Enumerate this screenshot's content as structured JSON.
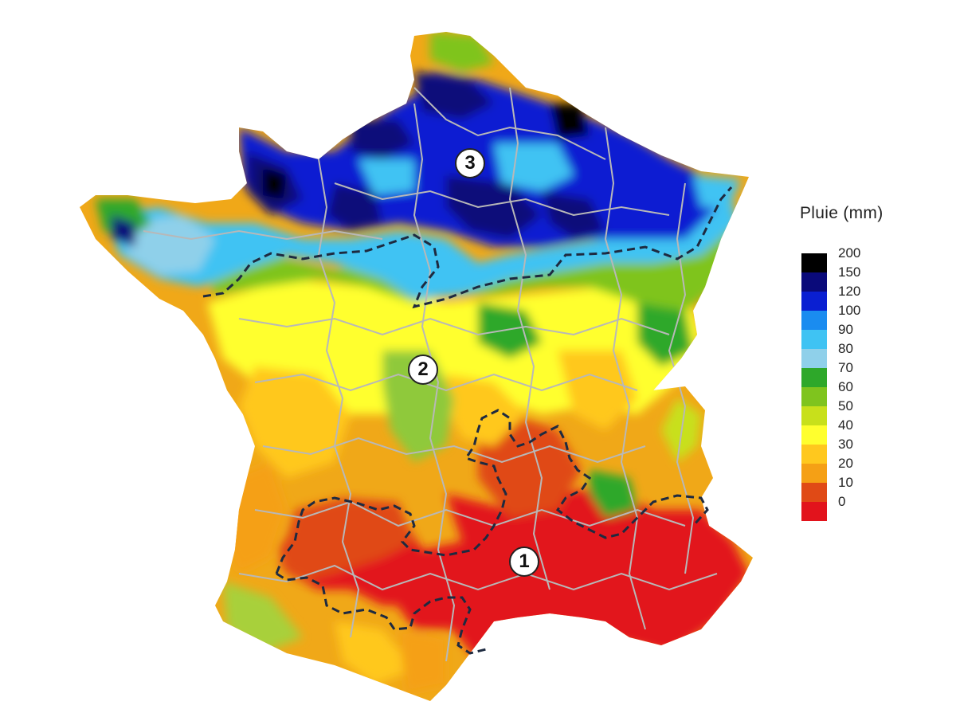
{
  "legend": {
    "title": "Pluie (mm)",
    "levels": [
      {
        "label": "200",
        "color": "#000000"
      },
      {
        "label": "150",
        "color": "#0a0a7a"
      },
      {
        "label": "120",
        "color": "#0a1fd2"
      },
      {
        "label": "100",
        "color": "#1a8cf0"
      },
      {
        "label": "90",
        "color": "#3fc3f3"
      },
      {
        "label": "80",
        "color": "#8fd0ea"
      },
      {
        "label": "70",
        "color": "#2ea82a"
      },
      {
        "label": "60",
        "color": "#7fc41e"
      },
      {
        "label": "50",
        "color": "#c8e01b"
      },
      {
        "label": "40",
        "color": "#ffff2e"
      },
      {
        "label": "30",
        "color": "#ffc81e"
      },
      {
        "label": "20",
        "color": "#f5a015"
      },
      {
        "label": "10",
        "color": "#e04a16"
      },
      {
        "label": "0",
        "color": "#e2131c"
      }
    ]
  },
  "zones": [
    {
      "id": "1",
      "label": "1"
    },
    {
      "id": "2",
      "label": "2"
    },
    {
      "id": "3",
      "label": "3"
    }
  ]
}
